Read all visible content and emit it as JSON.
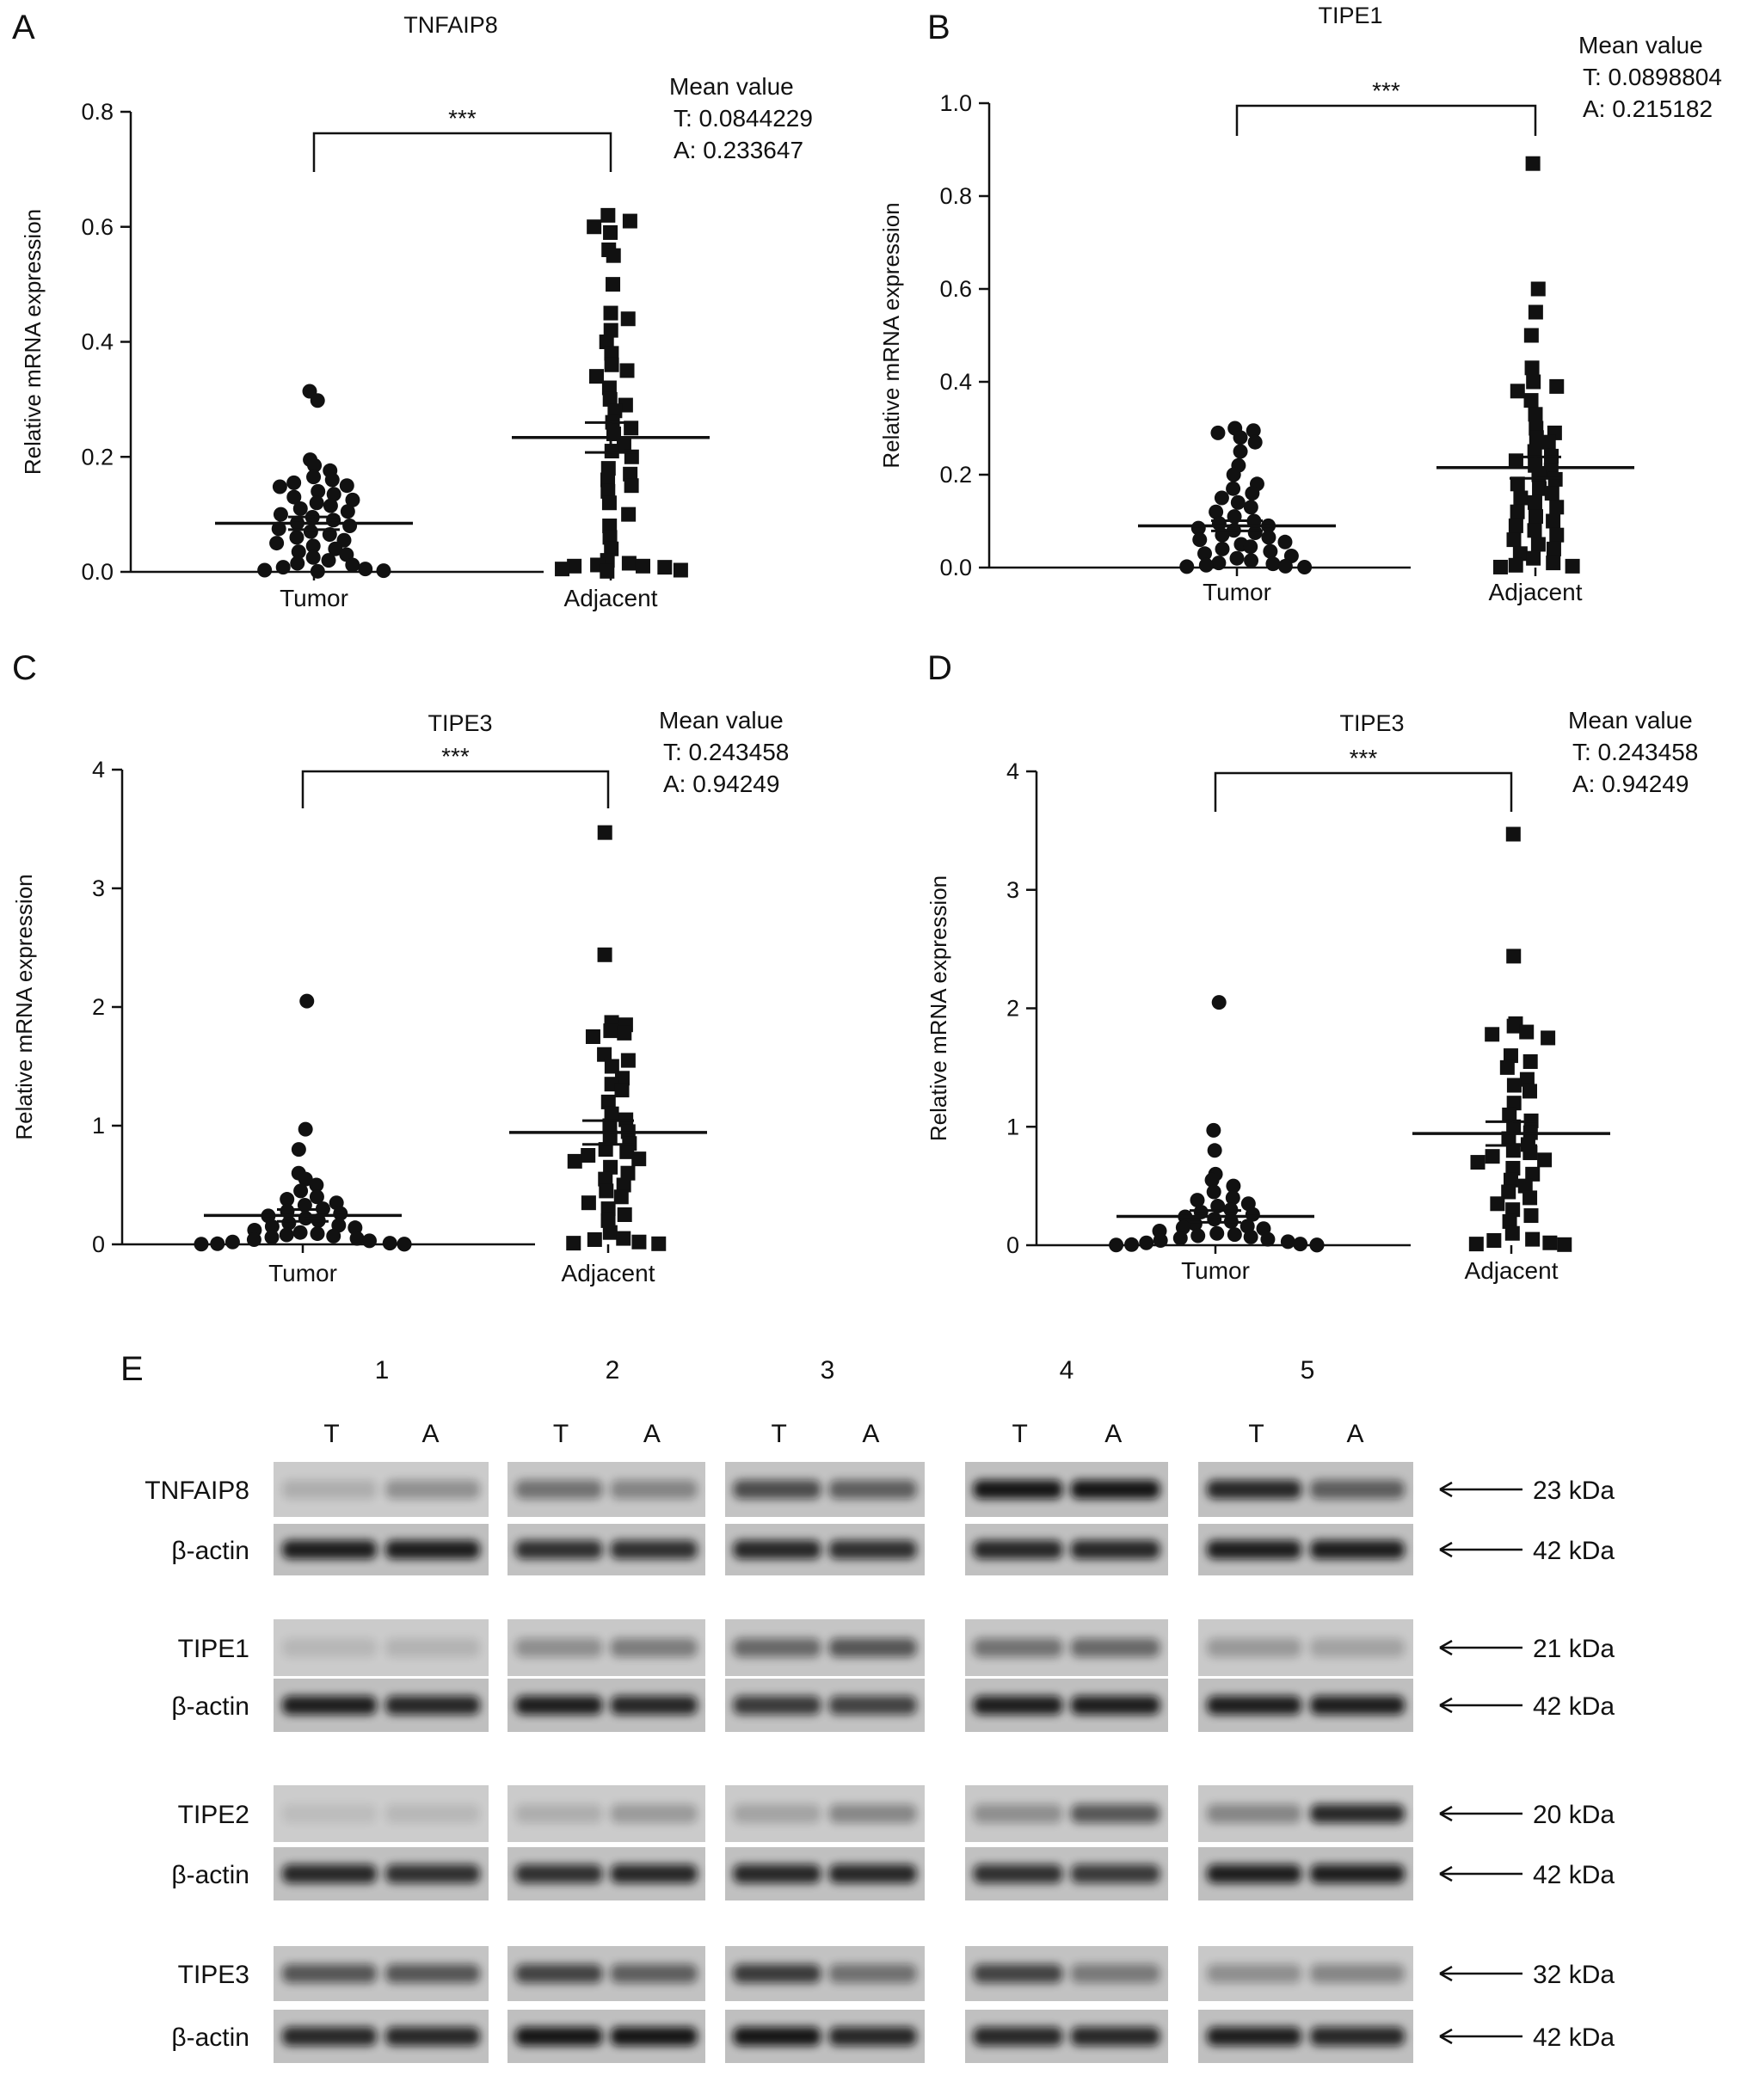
{
  "chart_data": [
    {
      "panel": "A",
      "type": "scatter",
      "title": "TNFAIP8",
      "ylabel": "Relative mRNA expression",
      "categories": [
        "Tumor",
        "Adjacent"
      ],
      "yticks": [
        "0.0",
        "0.2",
        "0.4",
        "0.6",
        "0.8"
      ],
      "ylim": [
        0,
        0.8
      ],
      "significance": "***",
      "mean_box": [
        "Mean value",
        "T: 0.0844229",
        "A: 0.233647"
      ],
      "means": [
        0.0844229,
        0.233647
      ],
      "sem": [
        0.011,
        0.026
      ],
      "series": [
        {
          "marker": "circle",
          "values": [
            0.314,
            0.298,
            0.195,
            0.185,
            0.176,
            0.165,
            0.16,
            0.155,
            0.15,
            0.148,
            0.14,
            0.135,
            0.13,
            0.125,
            0.12,
            0.115,
            0.11,
            0.105,
            0.1,
            0.095,
            0.09,
            0.085,
            0.08,
            0.075,
            0.07,
            0.065,
            0.06,
            0.055,
            0.05,
            0.045,
            0.04,
            0.035,
            0.03,
            0.025,
            0.02,
            0.015,
            0.012,
            0.008,
            0.005,
            0.003,
            0.002,
            0.001
          ]
        },
        {
          "marker": "square",
          "values": [
            0.62,
            0.61,
            0.6,
            0.59,
            0.56,
            0.55,
            0.5,
            0.45,
            0.44,
            0.42,
            0.4,
            0.38,
            0.36,
            0.35,
            0.34,
            0.32,
            0.3,
            0.29,
            0.28,
            0.26,
            0.25,
            0.24,
            0.22,
            0.21,
            0.2,
            0.18,
            0.17,
            0.16,
            0.15,
            0.14,
            0.12,
            0.1,
            0.08,
            0.06,
            0.04,
            0.02,
            0.015,
            0.012,
            0.01,
            0.01,
            0.008,
            0.005,
            0.003,
            0.001
          ]
        }
      ]
    },
    {
      "panel": "B",
      "type": "scatter",
      "title": "TIPE1",
      "ylabel": "Relative mRNA expression",
      "categories": [
        "Tumor",
        "Adjacent"
      ],
      "yticks": [
        "0.0",
        "0.2",
        "0.4",
        "0.6",
        "0.8",
        "1.0"
      ],
      "ylim": [
        0,
        1.0
      ],
      "significance": "***",
      "mean_box": [
        "Mean value",
        "T: 0.0898804",
        "A: 0.215182"
      ],
      "means": [
        0.0898804,
        0.215182
      ],
      "sem": [
        0.011,
        0.023
      ],
      "series": [
        {
          "marker": "circle",
          "values": [
            0.3,
            0.295,
            0.29,
            0.28,
            0.27,
            0.25,
            0.22,
            0.2,
            0.18,
            0.17,
            0.16,
            0.15,
            0.14,
            0.13,
            0.12,
            0.11,
            0.1,
            0.095,
            0.09,
            0.085,
            0.08,
            0.075,
            0.07,
            0.065,
            0.06,
            0.055,
            0.05,
            0.045,
            0.04,
            0.035,
            0.03,
            0.025,
            0.02,
            0.015,
            0.01,
            0.008,
            0.005,
            0.003,
            0.002,
            0.001
          ]
        },
        {
          "marker": "square",
          "values": [
            0.87,
            0.6,
            0.55,
            0.5,
            0.43,
            0.4,
            0.39,
            0.38,
            0.36,
            0.33,
            0.3,
            0.29,
            0.28,
            0.27,
            0.25,
            0.24,
            0.23,
            0.22,
            0.21,
            0.2,
            0.19,
            0.18,
            0.17,
            0.16,
            0.15,
            0.14,
            0.13,
            0.12,
            0.11,
            0.1,
            0.09,
            0.08,
            0.07,
            0.06,
            0.05,
            0.04,
            0.03,
            0.02,
            0.01,
            0.005,
            0.003,
            0.001
          ]
        }
      ]
    },
    {
      "panel": "C",
      "type": "scatter",
      "title": "TIPE3",
      "ylabel": "Relative mRNA expression",
      "categories": [
        "Tumor",
        "Adjacent"
      ],
      "yticks": [
        "0",
        "1",
        "2",
        "3",
        "4"
      ],
      "ylim": [
        0,
        4
      ],
      "significance": "***",
      "mean_box": [
        "Mean value",
        "T: 0.243458",
        "A: 0.94249"
      ],
      "means": [
        0.243458,
        0.94249
      ],
      "sem": [
        0.05,
        0.1
      ],
      "series": [
        {
          "marker": "circle",
          "values": [
            2.05,
            0.97,
            0.8,
            0.6,
            0.55,
            0.5,
            0.45,
            0.4,
            0.38,
            0.35,
            0.33,
            0.3,
            0.28,
            0.26,
            0.24,
            0.22,
            0.2,
            0.18,
            0.16,
            0.15,
            0.14,
            0.12,
            0.1,
            0.09,
            0.08,
            0.07,
            0.06,
            0.05,
            0.04,
            0.03,
            0.02,
            0.01,
            0.005,
            0.003,
            0.002,
            0.001
          ]
        },
        {
          "marker": "square",
          "values": [
            3.47,
            2.44,
            1.87,
            1.85,
            1.8,
            1.78,
            1.75,
            1.6,
            1.55,
            1.5,
            1.4,
            1.35,
            1.3,
            1.2,
            1.1,
            1.05,
            1.0,
            0.95,
            0.9,
            0.85,
            0.8,
            0.78,
            0.75,
            0.72,
            0.7,
            0.65,
            0.6,
            0.55,
            0.5,
            0.45,
            0.4,
            0.35,
            0.3,
            0.25,
            0.2,
            0.1,
            0.05,
            0.04,
            0.02,
            0.01,
            0.005
          ]
        }
      ]
    },
    {
      "panel": "D",
      "type": "scatter",
      "title": "TIPE3",
      "ylabel": "Relative mRNA expression",
      "categories": [
        "Tumor",
        "Adjacent"
      ],
      "yticks": [
        "0",
        "1",
        "2",
        "3",
        "4"
      ],
      "ylim": [
        0,
        4
      ],
      "significance": "***",
      "mean_box": [
        "Mean value",
        "T: 0.243458",
        "A: 0.94249"
      ],
      "means": [
        0.243458,
        0.94249
      ],
      "sem": [
        0.05,
        0.1
      ],
      "series": [
        {
          "marker": "circle",
          "values": [
            2.05,
            0.97,
            0.8,
            0.6,
            0.55,
            0.5,
            0.45,
            0.4,
            0.38,
            0.35,
            0.33,
            0.3,
            0.28,
            0.26,
            0.24,
            0.22,
            0.2,
            0.18,
            0.16,
            0.15,
            0.14,
            0.12,
            0.1,
            0.09,
            0.08,
            0.07,
            0.06,
            0.05,
            0.04,
            0.03,
            0.02,
            0.01,
            0.005,
            0.003,
            0.002,
            0.001
          ]
        },
        {
          "marker": "square",
          "values": [
            3.47,
            2.44,
            1.87,
            1.85,
            1.8,
            1.78,
            1.75,
            1.6,
            1.55,
            1.5,
            1.4,
            1.35,
            1.3,
            1.2,
            1.1,
            1.05,
            1.0,
            0.95,
            0.9,
            0.85,
            0.8,
            0.78,
            0.75,
            0.72,
            0.7,
            0.65,
            0.6,
            0.55,
            0.5,
            0.45,
            0.4,
            0.35,
            0.3,
            0.25,
            0.2,
            0.1,
            0.05,
            0.04,
            0.02,
            0.01,
            0.005
          ]
        }
      ]
    }
  ],
  "western_blot": {
    "panel": "E",
    "lanes": [
      "1",
      "2",
      "3",
      "4",
      "5"
    ],
    "sublanes": [
      "T",
      "A"
    ],
    "rows": [
      {
        "label": "TNFAIP8",
        "kda": "23 kDa",
        "intensity": [
          [
            0.15,
            0.3
          ],
          [
            0.45,
            0.35
          ],
          [
            0.65,
            0.55
          ],
          [
            0.95,
            0.95
          ],
          [
            0.85,
            0.55
          ]
        ]
      },
      {
        "label": "β-actin",
        "kda": "42 kDa",
        "intensity": [
          [
            0.9,
            0.9
          ],
          [
            0.8,
            0.8
          ],
          [
            0.85,
            0.8
          ],
          [
            0.85,
            0.85
          ],
          [
            0.9,
            0.9
          ]
        ]
      },
      {
        "label": "TIPE1",
        "kda": "21 kDa",
        "intensity": [
          [
            0.1,
            0.12
          ],
          [
            0.3,
            0.4
          ],
          [
            0.5,
            0.6
          ],
          [
            0.45,
            0.5
          ],
          [
            0.25,
            0.2
          ]
        ]
      },
      {
        "label": "β-actin",
        "kda": "42 kDa",
        "intensity": [
          [
            0.9,
            0.85
          ],
          [
            0.9,
            0.85
          ],
          [
            0.75,
            0.7
          ],
          [
            0.9,
            0.9
          ],
          [
            0.9,
            0.9
          ]
        ]
      },
      {
        "label": "TIPE2",
        "kda": "20 kDa",
        "intensity": [
          [
            0.05,
            0.1
          ],
          [
            0.15,
            0.25
          ],
          [
            0.2,
            0.35
          ],
          [
            0.3,
            0.6
          ],
          [
            0.35,
            0.85
          ]
        ]
      },
      {
        "label": "β-actin",
        "kda": "42 kDa",
        "intensity": [
          [
            0.85,
            0.8
          ],
          [
            0.8,
            0.85
          ],
          [
            0.85,
            0.85
          ],
          [
            0.8,
            0.75
          ],
          [
            0.9,
            0.9
          ]
        ]
      },
      {
        "label": "TIPE3",
        "kda": "32 kDa",
        "intensity": [
          [
            0.6,
            0.6
          ],
          [
            0.7,
            0.55
          ],
          [
            0.75,
            0.45
          ],
          [
            0.7,
            0.4
          ],
          [
            0.3,
            0.35
          ]
        ]
      },
      {
        "label": "β-actin",
        "kda": "42 kDa",
        "intensity": [
          [
            0.85,
            0.85
          ],
          [
            0.95,
            0.95
          ],
          [
            0.95,
            0.85
          ],
          [
            0.85,
            0.85
          ],
          [
            0.9,
            0.85
          ]
        ]
      }
    ]
  }
}
